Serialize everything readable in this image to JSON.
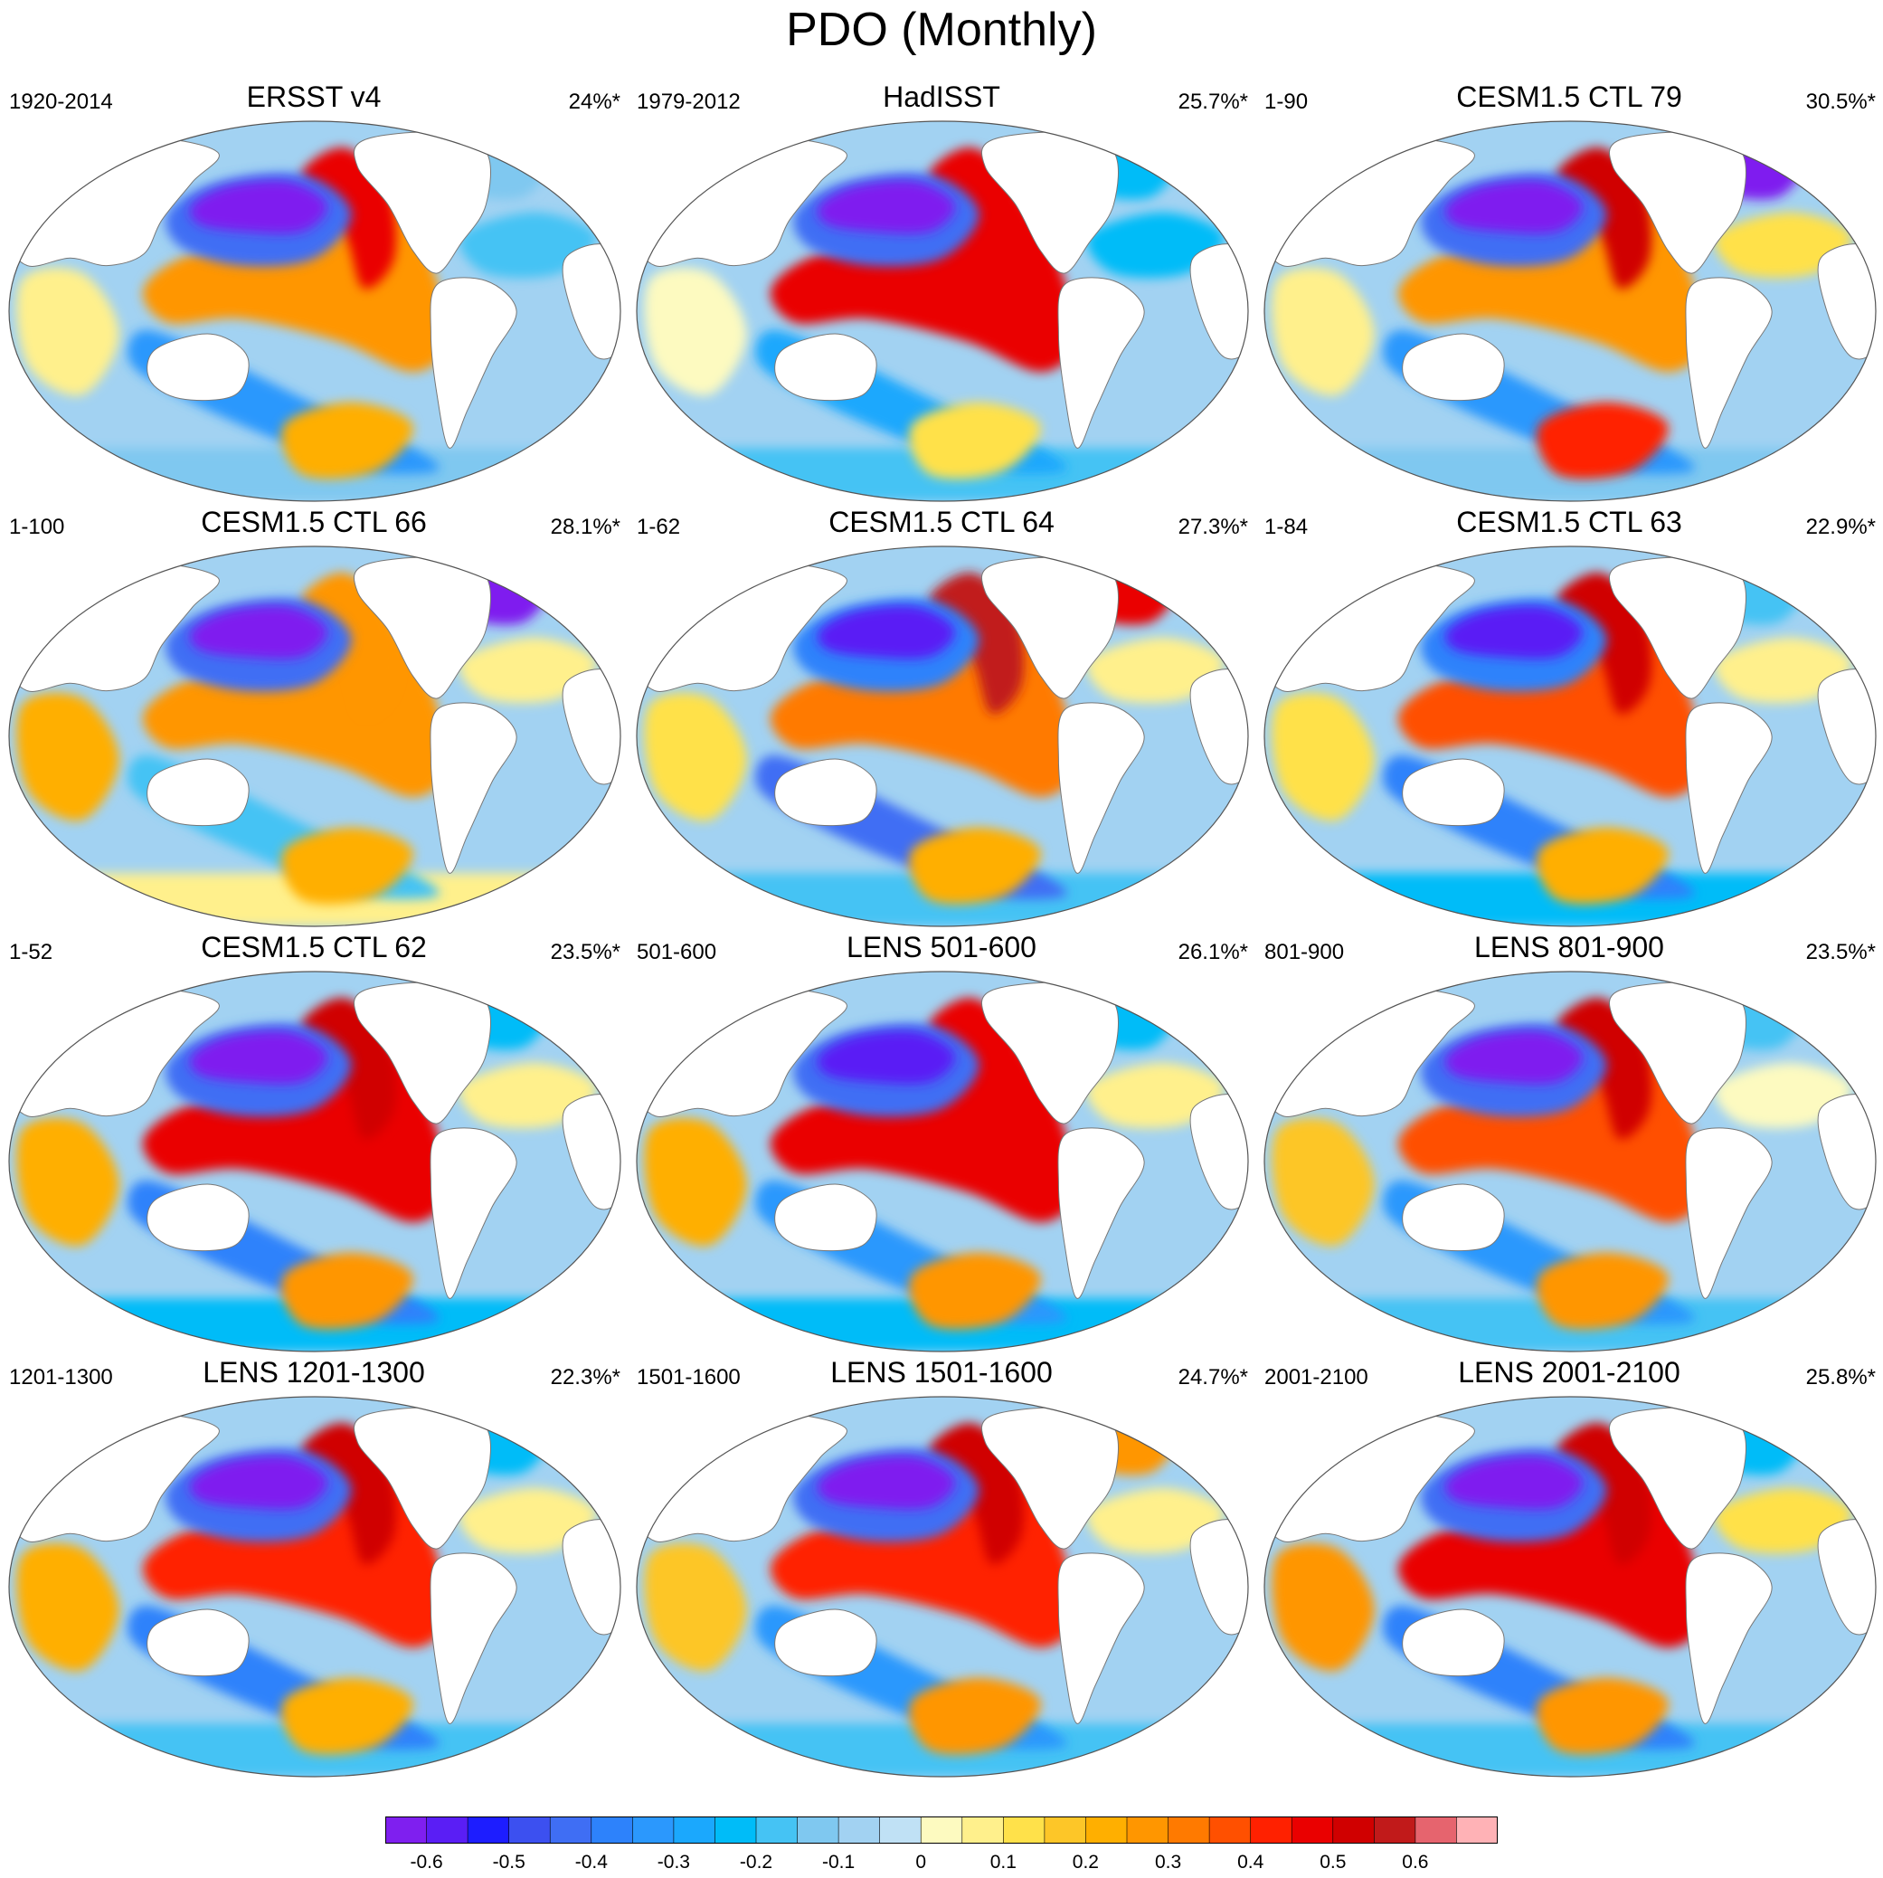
{
  "chart_data": {
    "type": "heatmap",
    "title": "PDO (Monthly)",
    "projection": "Robinson-like ellipse, Pacific-centred",
    "panels": [
      {
        "title": "ERSST v4",
        "period": "1920-2014",
        "variance": "24%*",
        "features": {
          "npac_cold": -0.6,
          "kuroshio_tongue": -0.4,
          "alaska_coast": 0.5,
          "tropical_band": 0.3,
          "sw_pac_cold": -0.3,
          "south_pac_warm": 0.25,
          "atlantic_north": -0.15,
          "indian_ocean": 0.1,
          "southern_ocean": -0.1,
          "north_atlantic_cold": -0.1
        }
      },
      {
        "title": "HadISST",
        "period": "1979-2012",
        "variance": "25.7%*",
        "features": {
          "npac_cold": -0.6,
          "kuroshio_tongue": -0.4,
          "alaska_coast": 0.5,
          "tropical_band": 0.5,
          "sw_pac_cold": -0.25,
          "south_pac_warm": 0.15,
          "atlantic_north": -0.2,
          "indian_ocean": 0.05,
          "southern_ocean": -0.15,
          "north_atlantic_cold": -0.2
        }
      },
      {
        "title": "CESM1.5 CTL 79",
        "period": "1-90",
        "variance": "30.5%*",
        "features": {
          "npac_cold": -0.7,
          "kuroshio_tongue": -0.4,
          "alaska_coast": 0.55,
          "tropical_band": 0.3,
          "sw_pac_cold": -0.3,
          "south_pac_warm": 0.45,
          "atlantic_north": 0.15,
          "indian_ocean": 0.1,
          "southern_ocean": -0.1,
          "north_atlantic_cold": -0.6
        }
      },
      {
        "title": "CESM1.5 CTL 66",
        "period": "1-100",
        "variance": "28.1%*",
        "features": {
          "npac_cold": -0.7,
          "kuroshio_tongue": -0.4,
          "alaska_coast": 0.3,
          "tropical_band": 0.3,
          "sw_pac_cold": -0.15,
          "south_pac_warm": 0.25,
          "atlantic_north": 0.1,
          "indian_ocean": 0.25,
          "southern_ocean": 0.1,
          "north_atlantic_cold": -0.6
        }
      },
      {
        "title": "CESM1.5 CTL 64",
        "period": "1-62",
        "variance": "27.3%*",
        "features": {
          "npac_cold": -0.55,
          "kuroshio_tongue": -0.35,
          "alaska_coast": 0.6,
          "tropical_band": 0.35,
          "sw_pac_cold": -0.4,
          "south_pac_warm": 0.25,
          "atlantic_north": 0.1,
          "indian_ocean": 0.15,
          "southern_ocean": -0.15,
          "north_atlantic_cold": 0.5
        }
      },
      {
        "title": "CESM1.5 CTL 63",
        "period": "1-84",
        "variance": "22.9%*",
        "features": {
          "npac_cold": -0.55,
          "kuroshio_tongue": -0.35,
          "alaska_coast": 0.55,
          "tropical_band": 0.4,
          "sw_pac_cold": -0.35,
          "south_pac_warm": 0.25,
          "atlantic_north": 0.1,
          "indian_ocean": 0.15,
          "southern_ocean": -0.2,
          "north_atlantic_cold": -0.15
        }
      },
      {
        "title": "CESM1.5 CTL 62",
        "period": "1-52",
        "variance": "23.5%*",
        "features": {
          "npac_cold": -0.6,
          "kuroshio_tongue": -0.4,
          "alaska_coast": 0.55,
          "tropical_band": 0.5,
          "sw_pac_cold": -0.35,
          "south_pac_warm": 0.3,
          "atlantic_north": 0.1,
          "indian_ocean": 0.25,
          "southern_ocean": -0.2,
          "north_atlantic_cold": -0.2
        }
      },
      {
        "title": "LENS 501-600",
        "period": "501-600",
        "variance": "26.1%*",
        "features": {
          "npac_cold": -0.55,
          "kuroshio_tongue": -0.4,
          "alaska_coast": 0.5,
          "tropical_band": 0.5,
          "sw_pac_cold": -0.3,
          "south_pac_warm": 0.3,
          "atlantic_north": 0.1,
          "indian_ocean": 0.25,
          "southern_ocean": -0.2,
          "north_atlantic_cold": -0.2
        }
      },
      {
        "title": "LENS 801-900",
        "period": "801-900",
        "variance": "23.5%*",
        "features": {
          "npac_cold": -0.6,
          "kuroshio_tongue": -0.4,
          "alaska_coast": 0.55,
          "tropical_band": 0.4,
          "sw_pac_cold": -0.3,
          "south_pac_warm": 0.3,
          "atlantic_north": 0.05,
          "indian_ocean": 0.2,
          "southern_ocean": -0.15,
          "north_atlantic_cold": -0.15
        }
      },
      {
        "title": "LENS 1201-1300",
        "period": "1201-1300",
        "variance": "22.3%*",
        "features": {
          "npac_cold": -0.6,
          "kuroshio_tongue": -0.4,
          "alaska_coast": 0.55,
          "tropical_band": 0.45,
          "sw_pac_cold": -0.35,
          "south_pac_warm": 0.25,
          "atlantic_north": 0.1,
          "indian_ocean": 0.25,
          "southern_ocean": -0.15,
          "north_atlantic_cold": -0.2
        }
      },
      {
        "title": "LENS 1501-1600",
        "period": "1501-1600",
        "variance": "24.7%*",
        "features": {
          "npac_cold": -0.7,
          "kuroshio_tongue": -0.4,
          "alaska_coast": 0.55,
          "tropical_band": 0.45,
          "sw_pac_cold": -0.3,
          "south_pac_warm": 0.3,
          "atlantic_north": 0.1,
          "indian_ocean": 0.2,
          "southern_ocean": -0.15,
          "north_atlantic_cold": 0.3
        }
      },
      {
        "title": "LENS 2001-2100",
        "period": "2001-2100",
        "variance": "25.8%*",
        "features": {
          "npac_cold": -0.6,
          "kuroshio_tongue": -0.4,
          "alaska_coast": 0.55,
          "tropical_band": 0.5,
          "sw_pac_cold": -0.35,
          "south_pac_warm": 0.3,
          "atlantic_north": 0.15,
          "indian_ocean": 0.3,
          "southern_ocean": -0.15,
          "north_atlantic_cold": -0.2
        }
      }
    ],
    "colorbar": {
      "levels": [
        -0.6,
        -0.55,
        -0.5,
        -0.45,
        -0.4,
        -0.35,
        -0.3,
        -0.25,
        -0.2,
        -0.15,
        -0.1,
        -0.05,
        0,
        0.05,
        0.1,
        0.15,
        0.2,
        0.25,
        0.3,
        0.35,
        0.4,
        0.45,
        0.5,
        0.55,
        0.6
      ],
      "tick_labels": [
        "-0.6",
        "-0.5",
        "-0.4",
        "-0.3",
        "-0.2",
        "-0.1",
        "0",
        "0.1",
        "0.2",
        "0.3",
        "0.4",
        "0.5",
        "0.6"
      ],
      "colors": [
        "#7f1fef",
        "#5a1ef5",
        "#1d1dff",
        "#3c50f0",
        "#3f6ef4",
        "#2d82fb",
        "#2b98fd",
        "#1ba8fd",
        "#00bcf8",
        "#45c3f4",
        "#7fc8f0",
        "#a2d2f2",
        "#c0e1f5",
        "#fdfac0",
        "#fff08c",
        "#ffe14a",
        "#fdc628",
        "#ffaf00",
        "#ff9600",
        "#ff7a00",
        "#ff5000",
        "#ff2100",
        "#ea0000",
        "#d00000",
        "#c11a1a",
        "#e6646e",
        "#ffb2b6"
      ]
    }
  }
}
